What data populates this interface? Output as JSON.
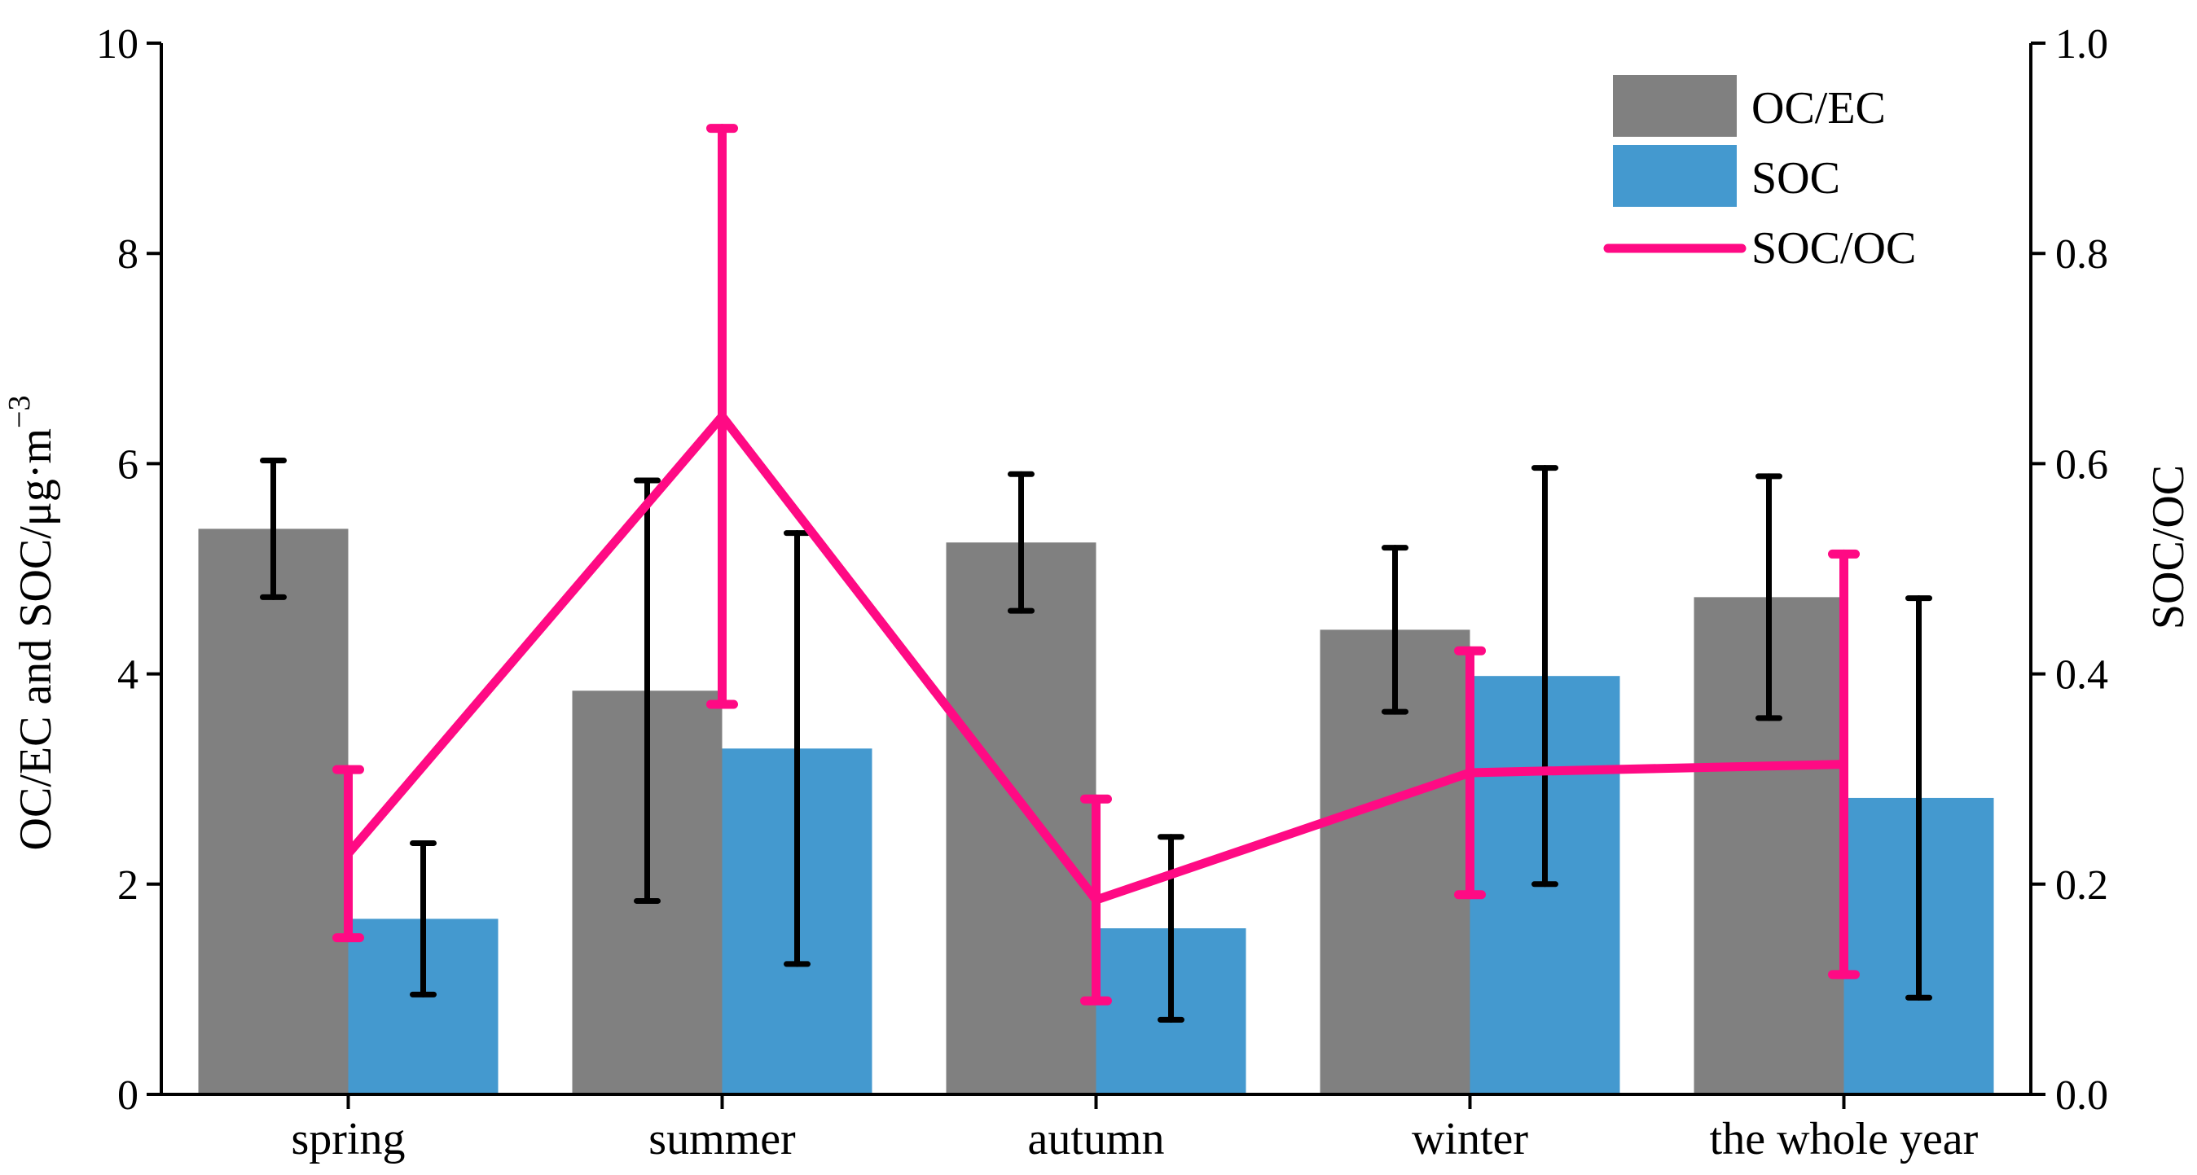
{
  "chart_data": {
    "type": "bar",
    "categories": [
      "spring",
      "summer",
      "autumn",
      "winter",
      "the whole year"
    ],
    "series": [
      {
        "name": "OC/EC",
        "kind": "bar",
        "axis": "left",
        "color": "#808080",
        "values": [
          5.38,
          3.84,
          5.25,
          4.42,
          4.73
        ],
        "errors": [
          0.65,
          2.0,
          0.65,
          0.78,
          1.15
        ]
      },
      {
        "name": "SOC",
        "kind": "bar",
        "axis": "left",
        "color": "#4499cf",
        "values": [
          1.67,
          3.29,
          1.58,
          3.98,
          2.82
        ],
        "errors": [
          0.72,
          2.05,
          0.87,
          1.98,
          1.9
        ]
      },
      {
        "name": "SOC/OC",
        "kind": "line",
        "axis": "right",
        "color": "#ff0a84",
        "values": [
          0.229,
          0.645,
          0.185,
          0.306,
          0.314
        ],
        "errors": [
          0.08,
          0.274,
          0.096,
          0.116,
          0.2
        ]
      }
    ],
    "ylabel": "OC/EC and SOC/μg·m",
    "ylabel_superscript": "−3",
    "y2label": "SOC/OC",
    "ylim": [
      0,
      10
    ],
    "y2lim": [
      0,
      1.0
    ],
    "yticks": [
      "0",
      "2",
      "4",
      "6",
      "8",
      "10"
    ],
    "y2ticks": [
      "0.0",
      "0.2",
      "0.4",
      "0.6",
      "0.8",
      "1.0"
    ],
    "legend_position": "top-right",
    "grid": false
  }
}
